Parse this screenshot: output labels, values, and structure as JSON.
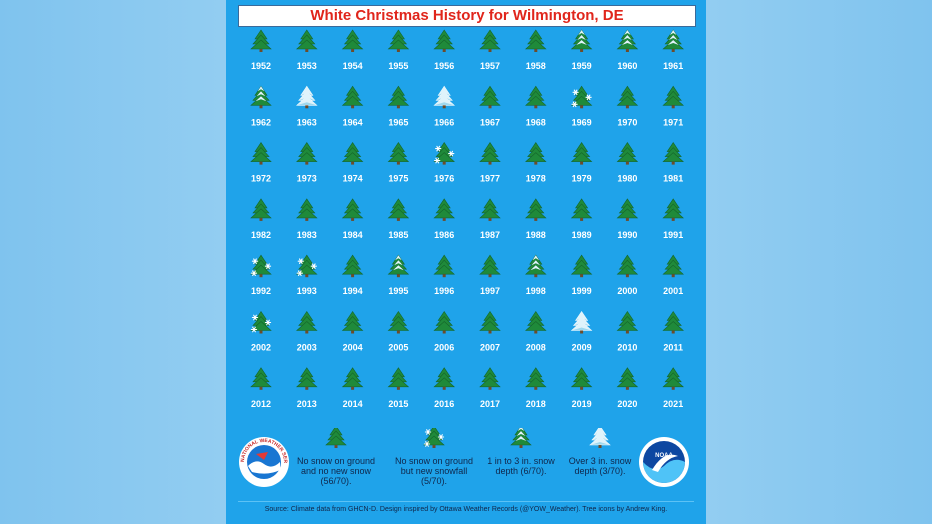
{
  "chart_data": {
    "type": "table",
    "title": "White Christmas History for Wilmington, DE",
    "categories": {
      "none": "No snow on ground and no new snow (56/70).",
      "new_snow": "No snow on ground but new snowfall (5/70).",
      "depth_1_3": "1 in to 3 in. snow depth (6/70).",
      "depth_over_3": "Over 3 in. snow depth (3/70)."
    },
    "years": [
      {
        "year": "1952",
        "category": "none"
      },
      {
        "year": "1953",
        "category": "none"
      },
      {
        "year": "1954",
        "category": "none"
      },
      {
        "year": "1955",
        "category": "none"
      },
      {
        "year": "1956",
        "category": "none"
      },
      {
        "year": "1957",
        "category": "none"
      },
      {
        "year": "1958",
        "category": "none"
      },
      {
        "year": "1959",
        "category": "depth_1_3"
      },
      {
        "year": "1960",
        "category": "depth_1_3"
      },
      {
        "year": "1961",
        "category": "depth_1_3"
      },
      {
        "year": "1962",
        "category": "depth_1_3"
      },
      {
        "year": "1963",
        "category": "depth_over_3"
      },
      {
        "year": "1964",
        "category": "none"
      },
      {
        "year": "1965",
        "category": "none"
      },
      {
        "year": "1966",
        "category": "depth_over_3"
      },
      {
        "year": "1967",
        "category": "none"
      },
      {
        "year": "1968",
        "category": "none"
      },
      {
        "year": "1969",
        "category": "new_snow"
      },
      {
        "year": "1970",
        "category": "none"
      },
      {
        "year": "1971",
        "category": "none"
      },
      {
        "year": "1972",
        "category": "none"
      },
      {
        "year": "1973",
        "category": "none"
      },
      {
        "year": "1974",
        "category": "none"
      },
      {
        "year": "1975",
        "category": "none"
      },
      {
        "year": "1976",
        "category": "new_snow"
      },
      {
        "year": "1977",
        "category": "none"
      },
      {
        "year": "1978",
        "category": "none"
      },
      {
        "year": "1979",
        "category": "none"
      },
      {
        "year": "1980",
        "category": "none"
      },
      {
        "year": "1981",
        "category": "none"
      },
      {
        "year": "1982",
        "category": "none"
      },
      {
        "year": "1983",
        "category": "none"
      },
      {
        "year": "1984",
        "category": "none"
      },
      {
        "year": "1985",
        "category": "none"
      },
      {
        "year": "1986",
        "category": "none"
      },
      {
        "year": "1987",
        "category": "none"
      },
      {
        "year": "1988",
        "category": "none"
      },
      {
        "year": "1989",
        "category": "none"
      },
      {
        "year": "1990",
        "category": "none"
      },
      {
        "year": "1991",
        "category": "none"
      },
      {
        "year": "1992",
        "category": "new_snow"
      },
      {
        "year": "1993",
        "category": "new_snow"
      },
      {
        "year": "1994",
        "category": "none"
      },
      {
        "year": "1995",
        "category": "depth_1_3"
      },
      {
        "year": "1996",
        "category": "none"
      },
      {
        "year": "1997",
        "category": "none"
      },
      {
        "year": "1998",
        "category": "depth_1_3"
      },
      {
        "year": "1999",
        "category": "none"
      },
      {
        "year": "2000",
        "category": "none"
      },
      {
        "year": "2001",
        "category": "none"
      },
      {
        "year": "2002",
        "category": "new_snow"
      },
      {
        "year": "2003",
        "category": "none"
      },
      {
        "year": "2004",
        "category": "none"
      },
      {
        "year": "2005",
        "category": "none"
      },
      {
        "year": "2006",
        "category": "none"
      },
      {
        "year": "2007",
        "category": "none"
      },
      {
        "year": "2008",
        "category": "none"
      },
      {
        "year": "2009",
        "category": "depth_over_3"
      },
      {
        "year": "2010",
        "category": "none"
      },
      {
        "year": "2011",
        "category": "none"
      },
      {
        "year": "2012",
        "category": "none"
      },
      {
        "year": "2013",
        "category": "none"
      },
      {
        "year": "2014",
        "category": "none"
      },
      {
        "year": "2015",
        "category": "none"
      },
      {
        "year": "2016",
        "category": "none"
      },
      {
        "year": "2017",
        "category": "none"
      },
      {
        "year": "2018",
        "category": "none"
      },
      {
        "year": "2019",
        "category": "none"
      },
      {
        "year": "2020",
        "category": "none"
      },
      {
        "year": "2021",
        "category": "none"
      }
    ]
  },
  "legend": [
    {
      "key": "none",
      "text": "No snow on ground and no new snow (56/70)."
    },
    {
      "key": "new_snow",
      "text": "No snow on ground but new snowfall (5/70)."
    },
    {
      "key": "depth_1_3",
      "text": "1 in to 3 in. snow depth (6/70)."
    },
    {
      "key": "depth_over_3",
      "text": "Over 3 in. snow depth (3/70)."
    }
  ],
  "logos": {
    "nws_text": "NATIONAL WEATHER SERVICE",
    "noaa_text": "NOAA"
  },
  "source_note": "Source: Climate data from GHCN-D.   Design inspired by Ottawa Weather Records (@YOW_Weather). Tree icons by Andrew King.",
  "colors": {
    "background": "#1fa3ea",
    "title_text": "#e0251b",
    "tree_green": "#1f8a3a",
    "tree_snowy": "#dff3fb",
    "year_label": "#ffffff"
  },
  "icons": {
    "none": "green-tree-icon",
    "new_snow": "tree-with-snowflakes-icon",
    "depth_1_3": "snow-dusted-tree-icon",
    "depth_over_3": "snow-covered-tree-icon"
  }
}
